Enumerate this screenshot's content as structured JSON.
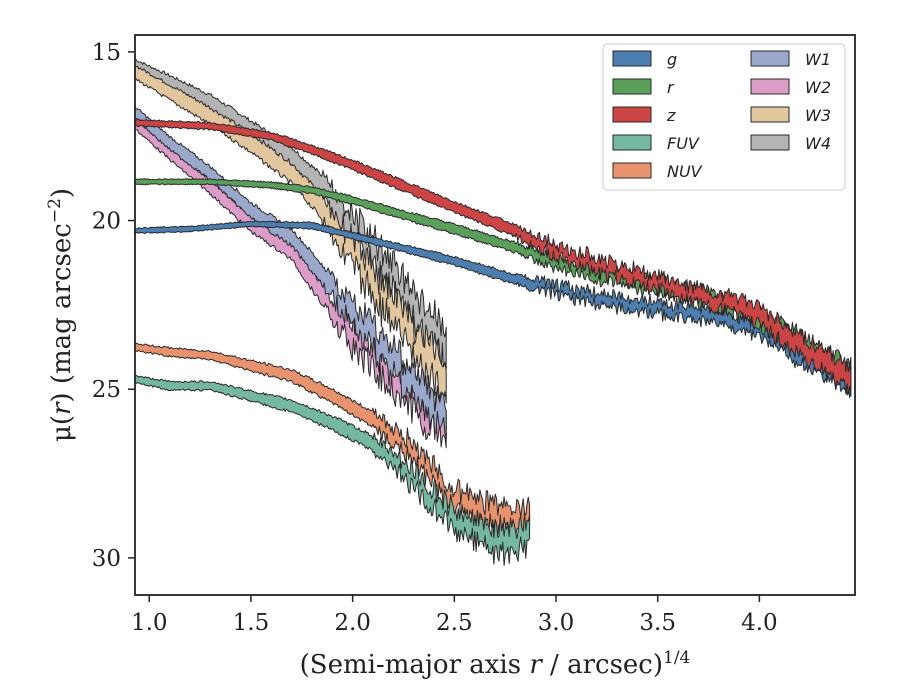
{
  "chart_data": {
    "type": "area",
    "xlabel_main": "(Semi-major axis ",
    "xlabel_var": "r",
    "xlabel_tail": " / arcsec)",
    "xlabel_exp": "1/4",
    "ylabel_main": "μ(",
    "ylabel_var": "r",
    "ylabel_tail": ") (mag arcsec",
    "ylabel_exp": "−2",
    "ylabel_close": ")",
    "xlim": [
      0.93,
      4.47
    ],
    "ylim": [
      31.1,
      14.5
    ],
    "y_inverted": true,
    "xticks": [
      "1.0",
      "1.5",
      "2.0",
      "2.5",
      "3.0",
      "3.5",
      "4.0"
    ],
    "xtick_values": [
      1.0,
      1.5,
      2.0,
      2.5,
      3.0,
      3.5,
      4.0
    ],
    "yticks": [
      "15",
      "20",
      "25",
      "30"
    ],
    "ytick_values": [
      15,
      20,
      25,
      30
    ],
    "grid": false,
    "legend_position": "top-right",
    "legend_columns": 2,
    "series": [
      {
        "name": "g",
        "color": "#4c7fb0",
        "noise": 0.18,
        "noise_start": 2.8,
        "x": [
          0.93,
          1.2,
          1.5,
          1.8,
          2.0,
          2.2,
          2.5,
          2.8,
          3.0,
          3.2,
          3.5,
          3.8,
          4.0,
          4.2,
          4.45
        ],
        "y": [
          20.3,
          20.25,
          20.1,
          20.15,
          20.45,
          20.75,
          21.2,
          21.75,
          22.05,
          22.3,
          22.6,
          22.85,
          23.2,
          24.0,
          24.8
        ],
        "w": [
          0.15,
          0.15,
          0.15,
          0.18,
          0.18,
          0.2,
          0.25,
          0.3,
          0.3,
          0.35,
          0.35,
          0.4,
          0.45,
          0.5,
          0.55
        ]
      },
      {
        "name": "r",
        "color": "#5aa05a",
        "noise": 0.18,
        "noise_start": 2.8,
        "x": [
          0.93,
          1.3,
          1.6,
          1.8,
          2.0,
          2.2,
          2.5,
          2.8,
          3.0,
          3.2,
          3.5,
          3.8,
          4.0,
          4.2,
          4.45
        ],
        "y": [
          18.85,
          18.85,
          18.95,
          19.1,
          19.4,
          19.75,
          20.25,
          20.8,
          21.25,
          21.55,
          21.95,
          22.4,
          22.9,
          23.6,
          24.5
        ],
        "w": [
          0.15,
          0.15,
          0.18,
          0.2,
          0.22,
          0.25,
          0.28,
          0.3,
          0.35,
          0.35,
          0.4,
          0.4,
          0.45,
          0.5,
          0.55
        ]
      },
      {
        "name": "z",
        "color": "#cc4444",
        "noise": 0.22,
        "noise_start": 2.8,
        "x": [
          0.93,
          1.3,
          1.6,
          1.8,
          2.0,
          2.2,
          2.5,
          2.8,
          3.0,
          3.2,
          3.5,
          3.8,
          4.0,
          4.2,
          4.45
        ],
        "y": [
          17.1,
          17.2,
          17.5,
          17.9,
          18.35,
          18.85,
          19.6,
          20.3,
          20.9,
          21.3,
          21.85,
          22.4,
          22.85,
          23.7,
          24.7
        ],
        "w": [
          0.18,
          0.2,
          0.22,
          0.25,
          0.28,
          0.3,
          0.32,
          0.35,
          0.38,
          0.4,
          0.4,
          0.45,
          0.5,
          0.6,
          0.65
        ]
      },
      {
        "name": "FUV",
        "color": "#74b8a0",
        "noise": 0.35,
        "noise_start": 2.1,
        "x": [
          0.93,
          1.1,
          1.3,
          1.5,
          1.7,
          1.9,
          2.1,
          2.3,
          2.5,
          2.7,
          2.87
        ],
        "y": [
          24.7,
          24.9,
          24.9,
          25.2,
          25.5,
          26.0,
          26.6,
          27.6,
          28.9,
          29.5,
          29.3
        ],
        "w": [
          0.2,
          0.25,
          0.25,
          0.3,
          0.35,
          0.4,
          0.45,
          0.5,
          0.6,
          0.7,
          0.75
        ]
      },
      {
        "name": "NUV",
        "color": "#e8936e",
        "noise": 0.35,
        "noise_start": 2.1,
        "x": [
          0.93,
          1.1,
          1.3,
          1.5,
          1.7,
          1.9,
          2.1,
          2.3,
          2.5,
          2.7,
          2.87
        ],
        "y": [
          23.75,
          23.9,
          24.0,
          24.3,
          24.6,
          25.2,
          25.9,
          26.9,
          28.3,
          28.8,
          28.8
        ],
        "w": [
          0.2,
          0.25,
          0.25,
          0.3,
          0.35,
          0.4,
          0.45,
          0.5,
          0.6,
          0.7,
          0.75
        ]
      },
      {
        "name": "W1",
        "color": "#9aa8cc",
        "noise": 0.45,
        "noise_start": 1.85,
        "x": [
          0.93,
          1.1,
          1.3,
          1.5,
          1.7,
          1.85,
          2.0,
          2.2,
          2.35,
          2.46
        ],
        "y": [
          16.8,
          17.7,
          18.6,
          19.7,
          20.5,
          21.6,
          22.8,
          24.1,
          25.3,
          25.8
        ],
        "w": [
          0.35,
          0.38,
          0.4,
          0.45,
          0.5,
          0.6,
          0.7,
          0.8,
          0.85,
          0.9
        ]
      },
      {
        "name": "W2",
        "color": "#dc9cc8",
        "noise": 0.45,
        "noise_start": 1.85,
        "x": [
          0.93,
          1.1,
          1.3,
          1.5,
          1.7,
          1.85,
          2.0,
          2.2,
          2.35,
          2.46
        ],
        "y": [
          17.1,
          18.0,
          19.0,
          20.1,
          20.9,
          22.2,
          23.4,
          24.6,
          25.6,
          26.0
        ],
        "w": [
          0.35,
          0.38,
          0.4,
          0.45,
          0.5,
          0.6,
          0.7,
          0.8,
          0.85,
          0.9
        ]
      },
      {
        "name": "W3",
        "color": "#e2c69e",
        "noise": 0.5,
        "noise_start": 1.85,
        "x": [
          0.93,
          1.1,
          1.3,
          1.5,
          1.7,
          1.85,
          2.0,
          2.2,
          2.35,
          2.46
        ],
        "y": [
          15.6,
          16.2,
          16.9,
          17.7,
          18.6,
          19.6,
          21.0,
          22.6,
          24.0,
          24.6
        ],
        "w": [
          0.4,
          0.45,
          0.5,
          0.55,
          0.6,
          0.7,
          0.8,
          0.9,
          1.0,
          1.05
        ]
      },
      {
        "name": "W4",
        "color": "#b4b4b4",
        "noise": 0.5,
        "noise_start": 1.85,
        "x": [
          0.93,
          1.1,
          1.3,
          1.5,
          1.7,
          1.85,
          2.0,
          2.2,
          2.35,
          2.46
        ],
        "y": [
          15.4,
          15.9,
          16.5,
          17.3,
          18.1,
          19.0,
          20.2,
          21.7,
          23.0,
          23.7
        ],
        "w": [
          0.35,
          0.4,
          0.45,
          0.5,
          0.55,
          0.65,
          0.75,
          0.85,
          0.95,
          1.0
        ]
      }
    ]
  }
}
